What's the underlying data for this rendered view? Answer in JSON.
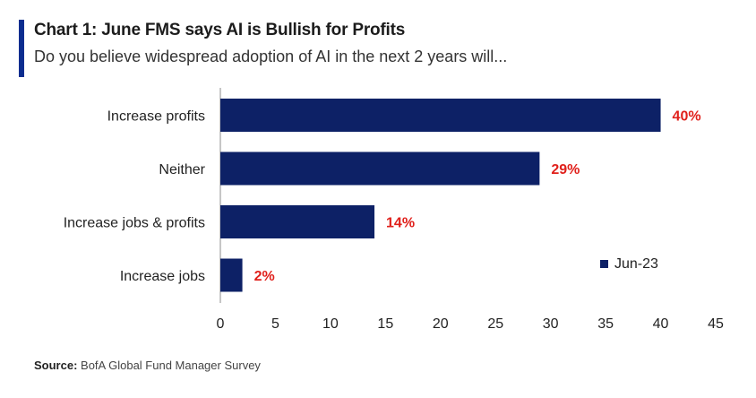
{
  "chart_data": {
    "type": "bar",
    "orientation": "horizontal",
    "title": "Chart 1: June FMS says AI is Bullish for Profits",
    "subtitle": "Do you believe widespread adoption of AI in the next 2 years will...",
    "categories": [
      "Increase profits",
      "Neither",
      "Increase jobs & profits",
      "Increase jobs"
    ],
    "series": [
      {
        "name": "Jun-23",
        "values": [
          40,
          29,
          14,
          2
        ],
        "data_labels": [
          "40%",
          "29%",
          "14%",
          "2%"
        ]
      }
    ],
    "xlim": [
      0,
      45
    ],
    "x_ticks": [
      0,
      5,
      10,
      15,
      20,
      25,
      30,
      35,
      40,
      45
    ],
    "xlabel": "",
    "ylabel": "",
    "grid": false,
    "legend_position": "right"
  },
  "source": {
    "label": "Source:",
    "text": "BofA Global Fund Manager Survey"
  },
  "colors": {
    "accent": "#0b2d8f",
    "bar": "#0d2166",
    "data_label": "#e0201b",
    "axis": "#8c8c8c"
  }
}
